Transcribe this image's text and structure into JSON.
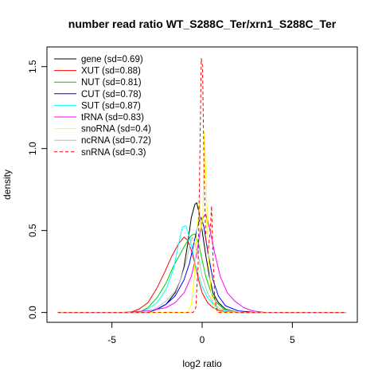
{
  "chart_data": {
    "type": "line",
    "title": "number read ratio WT_S288C_Ter/xrn1_S288C_Ter",
    "xlabel": "log2 ratio",
    "ylabel": "density",
    "xlim": [
      -8.6,
      8.6
    ],
    "ylim": [
      -0.06,
      1.62
    ],
    "x_ticks": [
      -5,
      0,
      5
    ],
    "x_tick_labels": [
      "-5",
      "0",
      "5"
    ],
    "y_ticks": [
      0.0,
      0.5,
      1.0,
      1.5
    ],
    "y_tick_labels": [
      "0.0",
      "0.5",
      "1.0",
      "1.5"
    ],
    "grid": false,
    "legend_position": "top-left",
    "series": [
      {
        "name": "gene (sd=0.69)",
        "color": "#000000",
        "dashed": false,
        "points": [
          [
            -8,
            0
          ],
          [
            -3,
            0
          ],
          [
            -2.5,
            0.02
          ],
          [
            -2,
            0.05
          ],
          [
            -1.5,
            0.12
          ],
          [
            -1.2,
            0.2
          ],
          [
            -1,
            0.28
          ],
          [
            -0.8,
            0.42
          ],
          [
            -0.6,
            0.58
          ],
          [
            -0.4,
            0.66
          ],
          [
            -0.3,
            0.67
          ],
          [
            -0.15,
            0.6
          ],
          [
            0,
            0.5
          ],
          [
            0.2,
            0.35
          ],
          [
            0.4,
            0.22
          ],
          [
            0.6,
            0.12
          ],
          [
            0.9,
            0.06
          ],
          [
            1.3,
            0.02
          ],
          [
            2,
            0
          ],
          [
            8,
            0
          ]
        ]
      },
      {
        "name": "XUT (sd=0.88)",
        "color": "#ff0000",
        "dashed": false,
        "points": [
          [
            -8,
            0
          ],
          [
            -4,
            0
          ],
          [
            -3.5,
            0.02
          ],
          [
            -3,
            0.06
          ],
          [
            -2.5,
            0.15
          ],
          [
            -2.1,
            0.24
          ],
          [
            -1.7,
            0.34
          ],
          [
            -1.3,
            0.42
          ],
          [
            -1,
            0.46
          ],
          [
            -0.8,
            0.44
          ],
          [
            -0.6,
            0.38
          ],
          [
            -0.4,
            0.3
          ],
          [
            -0.2,
            0.2
          ],
          [
            0,
            0.12
          ],
          [
            0.3,
            0.06
          ],
          [
            0.6,
            0.03
          ],
          [
            1,
            0.01
          ],
          [
            2,
            0
          ],
          [
            8,
            0
          ]
        ]
      },
      {
        "name": "NUT (sd=0.81)",
        "color": "#00cd00",
        "dashed": false,
        "points": [
          [
            -8,
            0
          ],
          [
            -3.5,
            0
          ],
          [
            -3,
            0.03
          ],
          [
            -2.5,
            0.09
          ],
          [
            -2,
            0.18
          ],
          [
            -1.6,
            0.28
          ],
          [
            -1.2,
            0.36
          ],
          [
            -0.9,
            0.42
          ],
          [
            -0.6,
            0.47
          ],
          [
            -0.4,
            0.48
          ],
          [
            -0.2,
            0.42
          ],
          [
            0,
            0.32
          ],
          [
            0.2,
            0.22
          ],
          [
            0.5,
            0.12
          ],
          [
            0.8,
            0.06
          ],
          [
            1.2,
            0.02
          ],
          [
            2,
            0
          ],
          [
            8,
            0
          ]
        ]
      },
      {
        "name": "CUT (sd=0.78)",
        "color": "#0000ff",
        "dashed": false,
        "points": [
          [
            -8,
            0
          ],
          [
            -3,
            0
          ],
          [
            -2.5,
            0.02
          ],
          [
            -2,
            0.05
          ],
          [
            -1.5,
            0.1
          ],
          [
            -1,
            0.2
          ],
          [
            -0.7,
            0.3
          ],
          [
            -0.4,
            0.45
          ],
          [
            -0.2,
            0.55
          ],
          [
            -0.05,
            0.58
          ],
          [
            0.1,
            0.52
          ],
          [
            0.3,
            0.38
          ],
          [
            0.6,
            0.2
          ],
          [
            0.9,
            0.1
          ],
          [
            1.3,
            0.04
          ],
          [
            2,
            0.01
          ],
          [
            3,
            0
          ],
          [
            8,
            0
          ]
        ]
      },
      {
        "name": "SUT (sd=0.87)",
        "color": "#00ffff",
        "dashed": false,
        "points": [
          [
            -8,
            0
          ],
          [
            -3.5,
            0
          ],
          [
            -3,
            0.02
          ],
          [
            -2.5,
            0.06
          ],
          [
            -2,
            0.14
          ],
          [
            -1.6,
            0.26
          ],
          [
            -1.3,
            0.42
          ],
          [
            -1.1,
            0.52
          ],
          [
            -0.9,
            0.53
          ],
          [
            -0.7,
            0.46
          ],
          [
            -0.5,
            0.36
          ],
          [
            -0.3,
            0.26
          ],
          [
            0,
            0.16
          ],
          [
            0.3,
            0.09
          ],
          [
            0.7,
            0.04
          ],
          [
            1.2,
            0.01
          ],
          [
            2,
            0
          ],
          [
            8,
            0
          ]
        ]
      },
      {
        "name": "tRNA (sd=0.83)",
        "color": "#ff00ff",
        "dashed": false,
        "points": [
          [
            -8,
            0
          ],
          [
            -4.5,
            0
          ],
          [
            -3,
            0.01
          ],
          [
            -2,
            0.03
          ],
          [
            -1.5,
            0.06
          ],
          [
            -1,
            0.12
          ],
          [
            -0.6,
            0.22
          ],
          [
            -0.3,
            0.36
          ],
          [
            -0.1,
            0.5
          ],
          [
            0.05,
            0.58
          ],
          [
            0.2,
            0.6
          ],
          [
            0.4,
            0.52
          ],
          [
            0.7,
            0.36
          ],
          [
            1,
            0.22
          ],
          [
            1.4,
            0.12
          ],
          [
            1.8,
            0.07
          ],
          [
            2.3,
            0.03
          ],
          [
            2.8,
            0.01
          ],
          [
            3.5,
            0
          ],
          [
            8,
            0
          ]
        ]
      },
      {
        "name": "snoRNA (sd=0.4)",
        "color": "#ffff00",
        "dashed": false,
        "points": [
          [
            -8,
            0
          ],
          [
            -0.8,
            0
          ],
          [
            -0.6,
            0.05
          ],
          [
            -0.45,
            0.2
          ],
          [
            -0.3,
            0.48
          ],
          [
            -0.15,
            0.66
          ],
          [
            -0.05,
            0.5
          ],
          [
            0.05,
            0.6
          ],
          [
            0.12,
            1.1
          ],
          [
            0.22,
            0.8
          ],
          [
            0.35,
            0.35
          ],
          [
            0.5,
            0.12
          ],
          [
            0.7,
            0.02
          ],
          [
            1,
            0
          ],
          [
            8,
            0
          ]
        ]
      },
      {
        "name": "ncRNA (sd=0.72)",
        "color": "#bebebe",
        "dashed": false,
        "points": [
          [
            -8,
            0
          ],
          [
            -3,
            0
          ],
          [
            -2.5,
            0.03
          ],
          [
            -2,
            0.07
          ],
          [
            -1.5,
            0.13
          ],
          [
            -1.2,
            0.2
          ],
          [
            -0.9,
            0.3
          ],
          [
            -0.7,
            0.4
          ],
          [
            -0.55,
            0.46
          ],
          [
            -0.4,
            0.42
          ],
          [
            -0.2,
            0.34
          ],
          [
            0,
            0.22
          ],
          [
            0.3,
            0.12
          ],
          [
            0.6,
            0.06
          ],
          [
            1,
            0.02
          ],
          [
            2,
            0
          ],
          [
            8,
            0
          ]
        ]
      },
      {
        "name": "snRNA (sd=0.3)",
        "color": "#ff0000",
        "dashed": true,
        "points": [
          [
            -8,
            0
          ],
          [
            -0.5,
            0
          ],
          [
            -0.35,
            0.03
          ],
          [
            -0.22,
            0.3
          ],
          [
            -0.12,
            1.0
          ],
          [
            -0.05,
            1.55
          ],
          [
            0.02,
            1.5
          ],
          [
            0.1,
            0.9
          ],
          [
            0.2,
            0.45
          ],
          [
            0.32,
            0.36
          ],
          [
            0.45,
            0.5
          ],
          [
            0.52,
            0.65
          ],
          [
            0.6,
            0.35
          ],
          [
            0.7,
            0.08
          ],
          [
            0.85,
            0
          ],
          [
            8,
            0
          ]
        ]
      }
    ]
  }
}
